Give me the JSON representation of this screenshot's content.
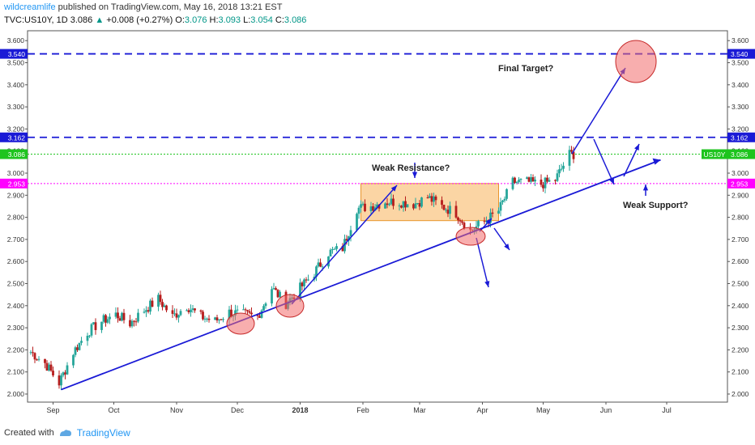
{
  "header": {
    "author": "wildcreamlife",
    "published_text": "published on TradingView.com, May 16, 2018 13:21 EST",
    "symbol": "TVC:US10Y, 1D",
    "last": "3.086",
    "change_arrow": "▲",
    "change": "+0.008 (+0.27%)",
    "o_label": "O:",
    "o": "3.076",
    "h_label": "H:",
    "h": "3.093",
    "l_label": "L:",
    "l": "3.054",
    "c_label": "C:",
    "c": "3.086"
  },
  "footer": {
    "created_with": "Created with",
    "brand": "TradingView"
  },
  "colors": {
    "up": "#26a69a",
    "down": "#b71c1c",
    "level_blue": "#1a1ad6",
    "level_magenta": "#ff00ff",
    "current_green": "#1ec41e",
    "zone": "#f8b25a"
  },
  "chart_data": {
    "type": "candlestick",
    "y_ticks": [
      "2.000",
      "2.100",
      "2.200",
      "2.300",
      "2.400",
      "2.500",
      "2.600",
      "2.700",
      "2.800",
      "2.900",
      "3.000",
      "3.100",
      "3.200",
      "3.300",
      "3.400",
      "3.500",
      "3.600"
    ],
    "ylim": [
      1.95,
      3.63
    ],
    "x_labels": [
      "Sep",
      "Oct",
      "Nov",
      "Dec",
      "2018",
      "Feb",
      "Mar",
      "Apr",
      "May",
      "Jun",
      "Jul"
    ],
    "price_tags": [
      {
        "value": "3.540",
        "kind": "blue"
      },
      {
        "value": "3.162",
        "kind": "blue"
      },
      {
        "value": "3.086",
        "kind": "green"
      },
      {
        "value": "2.953",
        "kind": "magenta"
      }
    ],
    "symbol_tag": "US10Y",
    "levels": [
      {
        "value": 3.54,
        "style": "dashed",
        "color": "blue"
      },
      {
        "value": 3.162,
        "style": "dashed",
        "color": "blue"
      },
      {
        "value": 3.086,
        "style": "dotted",
        "color": "green"
      },
      {
        "value": 2.953,
        "style": "dotted",
        "color": "magenta"
      }
    ],
    "annotations": [
      "Final Target?",
      "Weak Resistance?",
      "Weak Support?"
    ],
    "trendline": {
      "from": [
        "2017-09-05",
        2.02
      ],
      "to": [
        "2018-06-28",
        3.06
      ]
    },
    "closes": [
      [
        "2017-08-21",
        2.19
      ],
      [
        "2017-08-28",
        2.14
      ],
      [
        "2017-09-04",
        2.05
      ],
      [
        "2017-09-11",
        2.19
      ],
      [
        "2017-09-18",
        2.28
      ],
      [
        "2017-09-25",
        2.33
      ],
      [
        "2017-10-02",
        2.36
      ],
      [
        "2017-10-09",
        2.32
      ],
      [
        "2017-10-16",
        2.38
      ],
      [
        "2017-10-23",
        2.43
      ],
      [
        "2017-10-30",
        2.35
      ],
      [
        "2017-11-06",
        2.4
      ],
      [
        "2017-11-13",
        2.35
      ],
      [
        "2017-11-20",
        2.33
      ],
      [
        "2017-11-27",
        2.37
      ],
      [
        "2017-12-04",
        2.36
      ],
      [
        "2017-12-11",
        2.35
      ],
      [
        "2017-12-18",
        2.48
      ],
      [
        "2017-12-25",
        2.41
      ],
      [
        "2018-01-01",
        2.48
      ],
      [
        "2018-01-08",
        2.55
      ],
      [
        "2018-01-15",
        2.64
      ],
      [
        "2018-01-22",
        2.66
      ],
      [
        "2018-01-29",
        2.84
      ],
      [
        "2018-02-05",
        2.85
      ],
      [
        "2018-02-12",
        2.87
      ],
      [
        "2018-02-19",
        2.87
      ],
      [
        "2018-02-26",
        2.86
      ],
      [
        "2018-03-05",
        2.89
      ],
      [
        "2018-03-12",
        2.85
      ],
      [
        "2018-03-19",
        2.82
      ],
      [
        "2018-03-26",
        2.74
      ],
      [
        "2018-04-02",
        2.78
      ],
      [
        "2018-04-09",
        2.83
      ],
      [
        "2018-04-16",
        2.96
      ],
      [
        "2018-04-23",
        2.96
      ],
      [
        "2018-04-30",
        2.95
      ],
      [
        "2018-05-07",
        2.97
      ],
      [
        "2018-05-14",
        3.086
      ]
    ]
  }
}
